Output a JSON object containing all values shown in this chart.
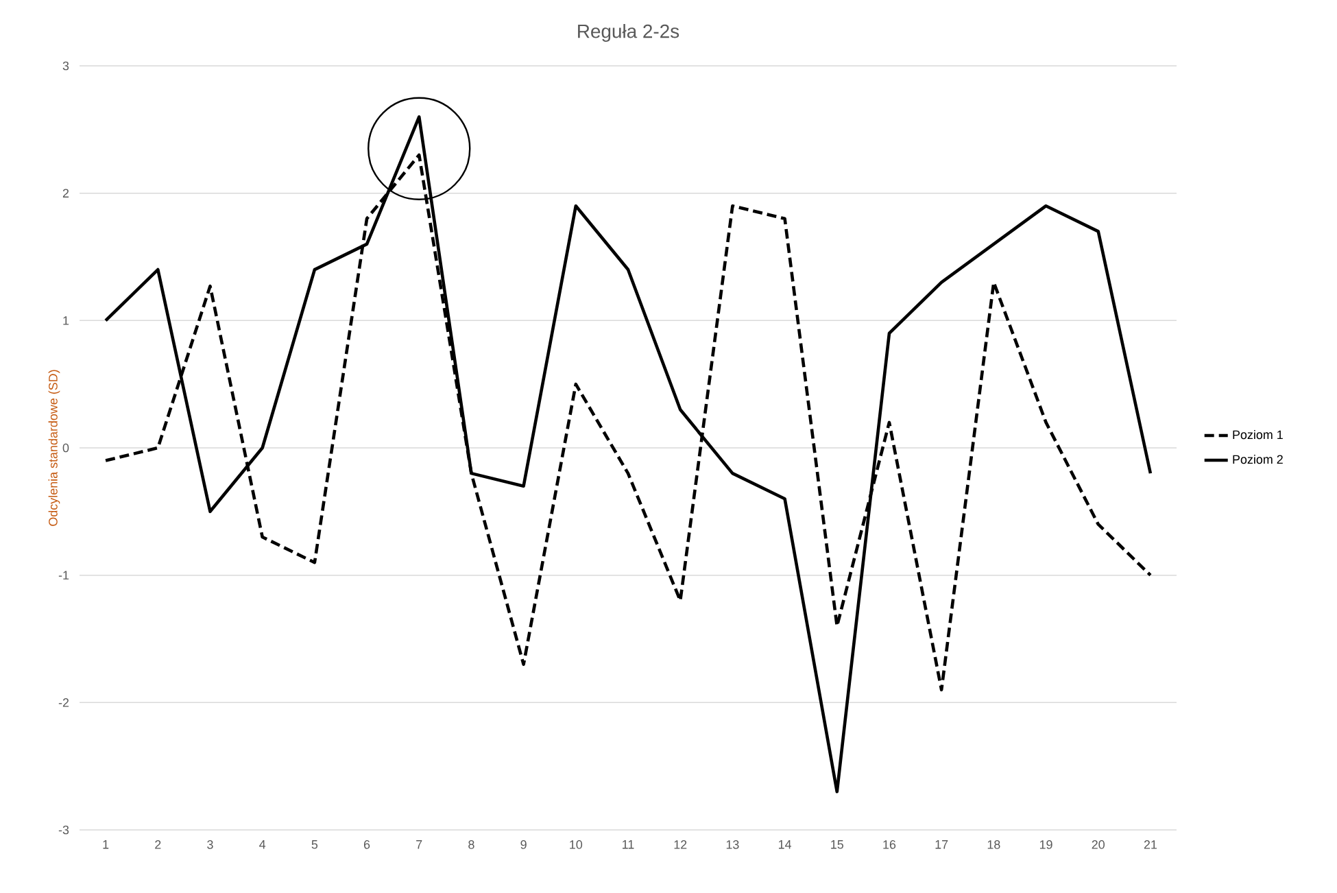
{
  "chart_data": {
    "type": "line",
    "title": "Reguła 2-2s",
    "ylabel": "Odcylenia standardowe (SD)",
    "categories": [
      "1",
      "2",
      "3",
      "4",
      "5",
      "6",
      "7",
      "8",
      "9",
      "10",
      "11",
      "12",
      "13",
      "14",
      "15",
      "16",
      "17",
      "18",
      "19",
      "20",
      "21"
    ],
    "series": [
      {
        "name": "Poziom 1",
        "color": "#000000",
        "line_style": "dashed",
        "values": [
          -0.1,
          0.0,
          1.27,
          -0.7,
          -0.9,
          1.8,
          2.3,
          -0.2,
          -1.7,
          0.5,
          -0.2,
          -1.2,
          1.9,
          1.8,
          -1.4,
          0.2,
          -1.9,
          1.3,
          0.2,
          -0.6,
          -1.0
        ]
      },
      {
        "name": "Poziom 2",
        "color": "#000000",
        "line_style": "solid",
        "values": [
          1.0,
          1.4,
          -0.5,
          0.0,
          1.4,
          1.6,
          2.6,
          -0.2,
          -0.3,
          1.9,
          1.4,
          0.3,
          -0.2,
          -0.4,
          -2.7,
          0.9,
          1.3,
          1.6,
          1.9,
          1.7,
          -0.2
        ]
      }
    ],
    "ylim": [
      -3,
      3
    ],
    "yticks": [
      -3,
      -2,
      -1,
      0,
      1,
      2,
      3
    ],
    "grid": "y",
    "legend": "right",
    "marker": "none"
  }
}
